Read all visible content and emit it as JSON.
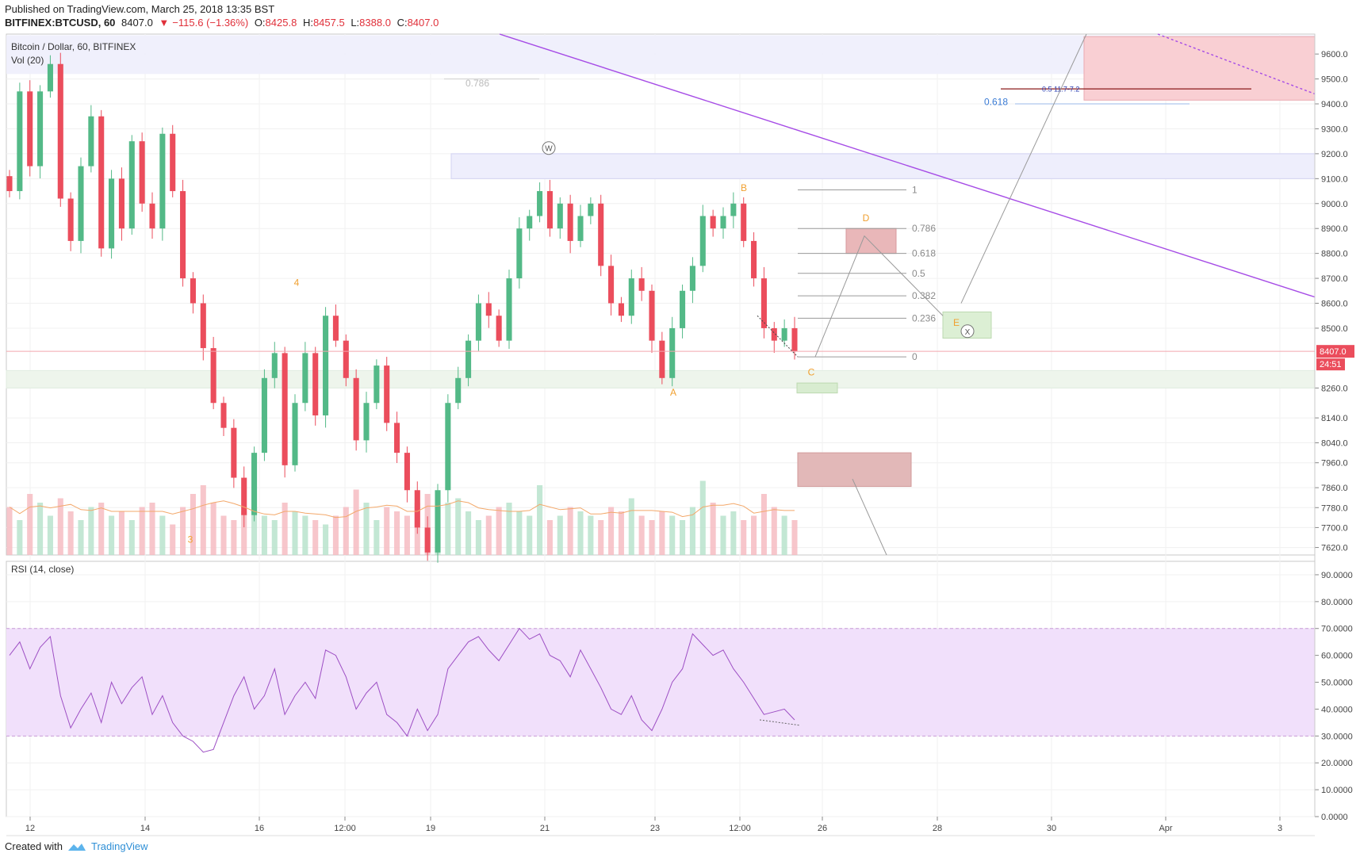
{
  "header": {
    "published": "Published on TradingView.com, March 25, 2018 13:35 BST",
    "symbol": "BITFINEX:BTCUSD, 60",
    "last": "8407.0",
    "change_arrow": "▼",
    "change": "−115.6 (−1.36%)",
    "o_label": "O:",
    "o": "8425.8",
    "h_label": "H:",
    "h": "8457.5",
    "l_label": "L:",
    "l": "8388.0",
    "c_label": "C:",
    "c": "8407.0"
  },
  "legend": {
    "main": "Bitcoin / Dollar, 60, BITFINEX",
    "vol": "Vol (20)",
    "rsi": "RSI (14, close)"
  },
  "footer": {
    "created": "Created with",
    "brand": "TradingView"
  },
  "colors": {
    "up": "#53b987",
    "down": "#eb4d5c",
    "trendline": "#a64ce6",
    "rsi_line": "#9d4fc4",
    "rsi_band": "#f1e0fb",
    "label_orange": "#f0a030",
    "fib_gray": "#999999",
    "fib_blue": "#3a7bd5"
  },
  "chart_data": [
    {
      "type": "candlestick",
      "title": "Bitcoin / Dollar, 60, BITFINEX",
      "ylim": [
        7590,
        9680
      ],
      "price_ticks": [
        "9600.0",
        "9500.0",
        "9400.0",
        "9300.0",
        "9200.0",
        "9100.0",
        "9000.0",
        "8900.0",
        "8800.0",
        "8700.0",
        "8600.0",
        "8500.0",
        "8260.0",
        "8140.0",
        "8040.0",
        "7960.0",
        "7860.0",
        "7780.0",
        "7700.0",
        "7620.0"
      ],
      "time_ticks": [
        "12",
        "14",
        "16",
        "12:00",
        "19",
        "21",
        "23",
        "12:00",
        "26",
        "28",
        "30",
        "Apr",
        "3"
      ],
      "last_price": "8407.0",
      "countdown": "24:51",
      "close_path": [
        9050,
        9450,
        9150,
        9450,
        9560,
        9020,
        8850,
        9150,
        9350,
        8820,
        9100,
        8900,
        9250,
        9000,
        8900,
        9280,
        9050,
        8700,
        8600,
        8420,
        8200,
        8100,
        7900,
        7750,
        8000,
        8300,
        8400,
        7950,
        8200,
        8400,
        8150,
        8550,
        8450,
        8300,
        8050,
        8200,
        8350,
        8120,
        8000,
        7850,
        7700,
        7600,
        7850,
        8200,
        8300,
        8450,
        8600,
        8550,
        8450,
        8700,
        8900,
        8950,
        9050,
        8900,
        9000,
        8850,
        8950,
        9000,
        8750,
        8600,
        8550,
        8700,
        8650,
        8450,
        8300,
        8500,
        8650,
        8750,
        8950,
        8900,
        8950,
        9000,
        8850,
        8700,
        8500,
        8450,
        8500,
        8407
      ],
      "series": [
        {
          "name": "Vol (20)",
          "values": [
            55,
            40,
            70,
            60,
            45,
            65,
            50,
            40,
            55,
            60,
            45,
            50,
            40,
            55,
            60,
            45,
            35,
            55,
            70,
            80,
            60,
            45,
            40,
            50,
            55,
            45,
            40,
            60,
            50,
            45,
            40,
            35,
            45,
            55,
            75,
            60,
            40,
            55,
            50,
            45,
            60,
            70,
            55,
            60,
            65,
            50,
            40,
            45,
            55,
            60,
            50,
            45,
            80,
            40,
            45,
            55,
            50,
            45,
            40,
            55,
            50,
            65,
            45,
            40,
            50,
            45,
            40,
            55,
            85,
            60,
            45,
            50,
            40,
            45,
            70,
            55,
            45,
            40
          ]
        },
        {
          "name": "RSI (14, close)",
          "values": [
            60,
            65,
            55,
            63,
            67,
            45,
            33,
            40,
            46,
            35,
            50,
            42,
            48,
            52,
            38,
            45,
            35,
            30,
            28,
            24,
            25,
            35,
            45,
            52,
            40,
            45,
            55,
            38,
            45,
            50,
            44,
            62,
            60,
            52,
            40,
            46,
            50,
            38,
            35,
            30,
            40,
            32,
            38,
            55,
            60,
            65,
            67,
            62,
            58,
            64,
            70,
            66,
            68,
            60,
            58,
            52,
            62,
            55,
            48,
            40,
            38,
            45,
            36,
            32,
            40,
            50,
            55,
            68,
            64,
            60,
            62,
            55,
            50,
            44,
            38,
            39,
            40,
            36
          ]
        }
      ],
      "annotations": {
        "wave_labels": [
          "4",
          "3",
          "W",
          "B",
          "D",
          "A",
          "C",
          "E",
          "X"
        ],
        "fib_levels": [
          "1",
          "0.786",
          "0.618",
          "0.5",
          "0.382",
          "0.236",
          "0"
        ],
        "fib_upper_786": "0.786",
        "fib_upper_618": "0.618",
        "fib_upper_text": "0.5 11.7-7.2"
      }
    },
    {
      "type": "line",
      "title": "RSI (14, close)",
      "ylim": [
        0,
        95
      ],
      "ticks": [
        "90.0000",
        "80.0000",
        "70.0000",
        "60.0000",
        "50.0000",
        "40.0000",
        "30.0000",
        "20.0000",
        "10.0000",
        "0.0000"
      ],
      "band": [
        30,
        70
      ]
    }
  ]
}
